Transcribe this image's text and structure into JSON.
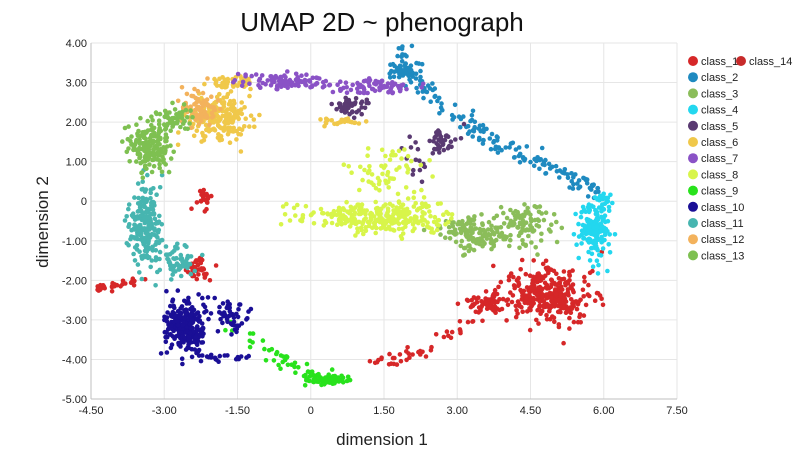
{
  "chart_data": {
    "type": "scatter",
    "title": "UMAP 2D ~ phenograph",
    "xlabel": "dimension 1",
    "ylabel": "dimension 2",
    "xlim": [
      -4.5,
      7.5
    ],
    "ylim": [
      -5.0,
      4.0
    ],
    "xticks": [
      "-4.50",
      "-3.00",
      "-1.50",
      "0",
      "1.50",
      "3.00",
      "4.50",
      "6.00",
      "7.50"
    ],
    "yticks": [
      "4.00",
      "3.00",
      "2.00",
      "1.00",
      "0",
      "-1.00",
      "-2.00",
      "-3.00",
      "-4.00",
      "-5.00"
    ],
    "grid": true,
    "legend_position": "right",
    "series": [
      {
        "name": "class_1",
        "color": "#d62728",
        "clusters": [
          {
            "center": [
              4.9,
              -2.4
            ],
            "spread": [
              0.75,
              0.55
            ],
            "n": 320
          },
          {
            "center": [
              3.6,
              -2.6
            ],
            "spread": [
              0.35,
              0.3
            ],
            "n": 60
          },
          {
            "center": [
              -2.3,
              -1.7
            ],
            "spread": [
              0.25,
              0.25
            ],
            "n": 40
          },
          {
            "center": [
              -2.2,
              0.0
            ],
            "spread": [
              0.12,
              0.25
            ],
            "n": 20
          }
        ],
        "paths": [
          {
            "points": [
              [
                -4.4,
                -2.2
              ],
              [
                -3.4,
                -2.0
              ]
            ],
            "n": 30,
            "jitter": 0.05
          },
          {
            "points": [
              [
                1.2,
                -4.1
              ],
              [
                2.4,
                -3.8
              ],
              [
                3.3,
                -3.0
              ]
            ],
            "n": 40,
            "jitter": 0.08
          }
        ]
      },
      {
        "name": "class_2",
        "color": "#1f8ac0",
        "clusters": [
          {
            "center": [
              1.9,
              3.3
            ],
            "spread": [
              0.25,
              0.3
            ],
            "n": 40
          }
        ],
        "paths": [
          {
            "points": [
              [
                1.8,
                3.9
              ],
              [
                2.2,
                3.0
              ],
              [
                2.8,
                2.3
              ],
              [
                3.5,
                1.7
              ],
              [
                4.2,
                1.2
              ],
              [
                5.0,
                0.8
              ],
              [
                5.8,
                0.3
              ]
            ],
            "n": 170,
            "jitter": 0.12
          }
        ]
      },
      {
        "name": "class_3",
        "color": "#8bbd5a",
        "clusters": [
          {
            "center": [
              3.4,
              -0.8
            ],
            "spread": [
              0.6,
              0.35
            ],
            "n": 140
          },
          {
            "center": [
              4.4,
              -0.6
            ],
            "spread": [
              0.5,
              0.4
            ],
            "n": 90
          }
        ],
        "paths": []
      },
      {
        "name": "class_4",
        "color": "#23d7ef",
        "clusters": [
          {
            "center": [
              5.8,
              -0.7
            ],
            "spread": [
              0.25,
              0.55
            ],
            "n": 170
          },
          {
            "center": [
              6.0,
              0.0
            ],
            "spread": [
              0.15,
              0.2
            ],
            "n": 25
          }
        ],
        "paths": []
      },
      {
        "name": "class_5",
        "color": "#5a3a72",
        "clusters": [
          {
            "center": [
              0.85,
              2.4
            ],
            "spread": [
              0.3,
              0.2
            ],
            "n": 45
          },
          {
            "center": [
              2.7,
              1.5
            ],
            "spread": [
              0.35,
              0.3
            ],
            "n": 40
          }
        ],
        "paths": [
          {
            "points": [
              [
                1.9,
                1.6
              ],
              [
                2.1,
                1.0
              ],
              [
                2.4,
                0.6
              ]
            ],
            "n": 15,
            "jitter": 0.1
          }
        ]
      },
      {
        "name": "class_6",
        "color": "#f0c84a",
        "clusters": [
          {
            "center": [
              -1.9,
              2.1
            ],
            "spread": [
              0.5,
              0.5
            ],
            "n": 190
          },
          {
            "center": [
              -1.6,
              3.0
            ],
            "spread": [
              0.4,
              0.15
            ],
            "n": 40
          },
          {
            "center": [
              0.6,
              2.0
            ],
            "spread": [
              0.35,
              0.1
            ],
            "n": 25
          }
        ],
        "paths": []
      },
      {
        "name": "class_7",
        "color": "#8a52c6",
        "clusters": [
          {
            "center": [
              -0.5,
              3.05
            ],
            "spread": [
              0.8,
              0.15
            ],
            "n": 110
          },
          {
            "center": [
              1.2,
              2.9
            ],
            "spread": [
              0.7,
              0.15
            ],
            "n": 75
          }
        ],
        "paths": []
      },
      {
        "name": "class_8",
        "color": "#d8f54a",
        "clusters": [
          {
            "center": [
              1.5,
              -0.4
            ],
            "spread": [
              1.0,
              0.35
            ],
            "n": 220
          },
          {
            "center": [
              1.6,
              0.7
            ],
            "spread": [
              0.6,
              0.5
            ],
            "n": 60
          }
        ],
        "paths": [
          {
            "points": [
              [
                -0.6,
                -0.3
              ],
              [
                0.5,
                -0.4
              ],
              [
                2.8,
                -0.6
              ]
            ],
            "n": 60,
            "jitter": 0.15
          }
        ]
      },
      {
        "name": "class_9",
        "color": "#28e21c",
        "clusters": [
          {
            "center": [
              0.3,
              -4.5
            ],
            "spread": [
              0.35,
              0.12
            ],
            "n": 70
          }
        ],
        "paths": [
          {
            "points": [
              [
                -1.7,
                -3.2
              ],
              [
                -0.9,
                -3.7
              ],
              [
                -0.4,
                -4.2
              ],
              [
                0.2,
                -4.5
              ],
              [
                0.8,
                -4.4
              ]
            ],
            "n": 50,
            "jitter": 0.12
          }
        ]
      },
      {
        "name": "class_10",
        "color": "#1a0f96",
        "clusters": [
          {
            "center": [
              -2.6,
              -3.2
            ],
            "spread": [
              0.35,
              0.55
            ],
            "n": 250
          },
          {
            "center": [
              -1.6,
              -2.9
            ],
            "spread": [
              0.25,
              0.4
            ],
            "n": 50
          }
        ],
        "paths": [
          {
            "points": [
              [
                -2.3,
                -3.9
              ],
              [
                -1.4,
                -4.0
              ]
            ],
            "n": 20,
            "jitter": 0.08
          }
        ]
      },
      {
        "name": "class_11",
        "color": "#47b5b0",
        "clusters": [
          {
            "center": [
              -3.4,
              -0.7
            ],
            "spread": [
              0.3,
              0.8
            ],
            "n": 220
          },
          {
            "center": [
              -2.7,
              -1.5
            ],
            "spread": [
              0.3,
              0.35
            ],
            "n": 60
          }
        ],
        "paths": []
      },
      {
        "name": "class_12",
        "color": "#f3b25c",
        "clusters": [
          {
            "center": [
              -2.3,
              2.4
            ],
            "spread": [
              0.35,
              0.35
            ],
            "n": 80
          }
        ],
        "paths": []
      },
      {
        "name": "class_13",
        "color": "#7ec051",
        "clusters": [
          {
            "center": [
              -3.3,
              1.4
            ],
            "spread": [
              0.35,
              0.5
            ],
            "n": 180
          },
          {
            "center": [
              -2.8,
              2.1
            ],
            "spread": [
              0.3,
              0.25
            ],
            "n": 60
          }
        ],
        "paths": []
      },
      {
        "name": "class_14",
        "color": "#c72a2a",
        "clusters": [],
        "paths": []
      }
    ]
  }
}
